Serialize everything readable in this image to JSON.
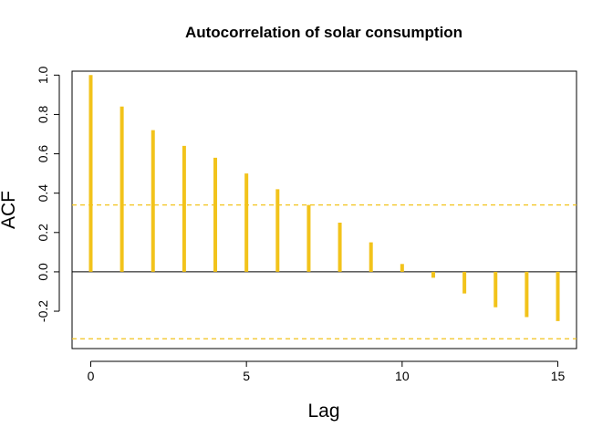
{
  "chart_data": {
    "type": "bar",
    "subtype": "acf-stem",
    "title": "Autocorrelation of solar consumption",
    "xlabel": "Lag",
    "ylabel": "ACF",
    "x": [
      0,
      1,
      2,
      3,
      4,
      5,
      6,
      7,
      8,
      9,
      10,
      11,
      12,
      13,
      14,
      15
    ],
    "values": [
      1.0,
      0.84,
      0.72,
      0.64,
      0.58,
      0.5,
      0.42,
      0.34,
      0.25,
      0.15,
      0.04,
      -0.03,
      -0.11,
      -0.18,
      -0.23,
      -0.25
    ],
    "xlim": [
      -0.6,
      15.6
    ],
    "ylim": [
      -0.39,
      1.02
    ],
    "xticks": [
      0,
      5,
      10,
      15
    ],
    "xtick_labels": [
      "0",
      "5",
      "10",
      "15"
    ],
    "yticks": [
      -0.2,
      0.0,
      0.2,
      0.4,
      0.6,
      0.8,
      1.0
    ],
    "ytick_labels": [
      "-0.2",
      "0.0",
      "0.2",
      "0.4",
      "0.6",
      "0.8",
      "1.0"
    ],
    "confidence_bound": 0.34,
    "grid": false,
    "colors": {
      "bars": "#F2C31B",
      "confidence": "#F2C31B",
      "zero_line": "#000000",
      "frame": "#000000"
    }
  }
}
